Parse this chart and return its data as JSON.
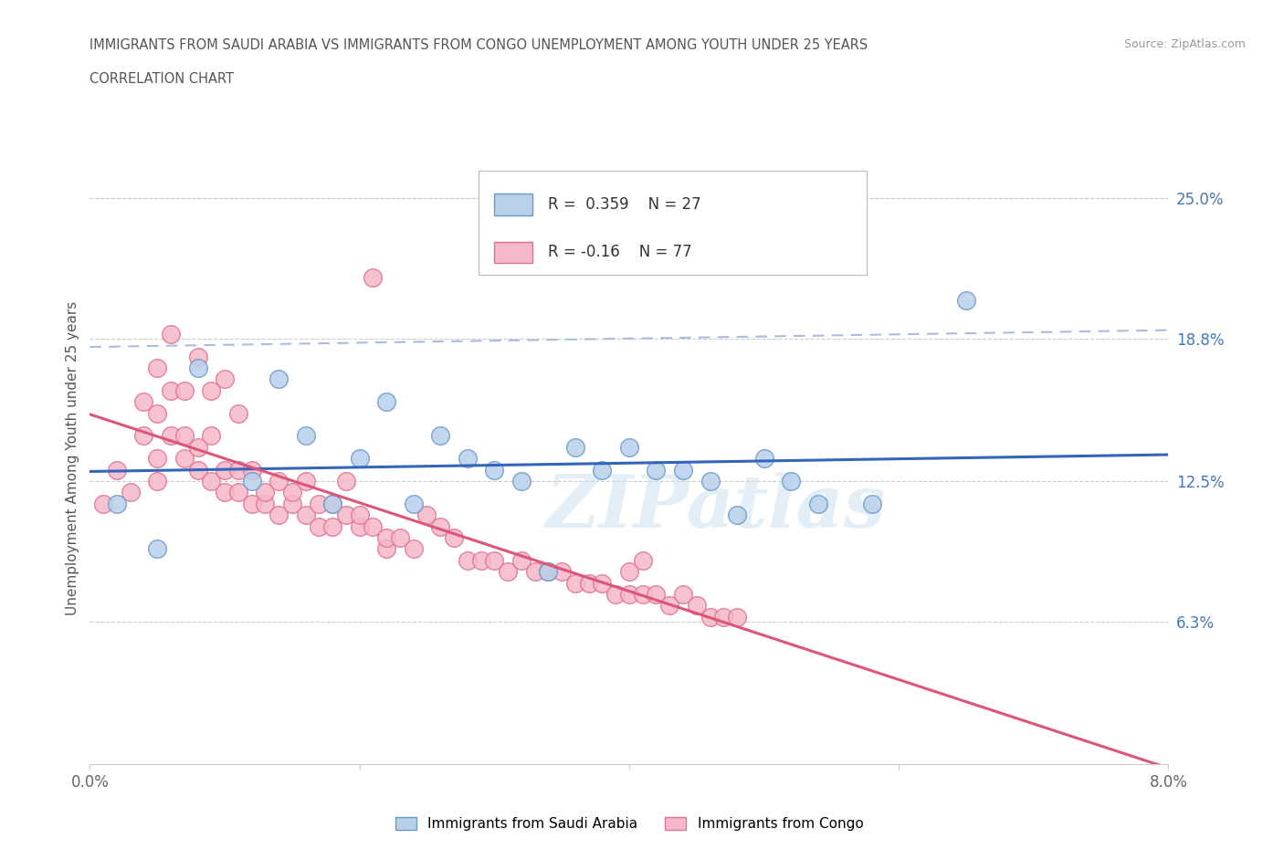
{
  "title_line1": "IMMIGRANTS FROM SAUDI ARABIA VS IMMIGRANTS FROM CONGO UNEMPLOYMENT AMONG YOUTH UNDER 25 YEARS",
  "title_line2": "CORRELATION CHART",
  "source_text": "Source: ZipAtlas.com",
  "ylabel": "Unemployment Among Youth under 25 years",
  "xlim": [
    0.0,
    0.08
  ],
  "ylim": [
    0.0,
    0.27
  ],
  "ytick_vals": [
    0.063,
    0.125,
    0.188,
    0.25
  ],
  "ytick_labels": [
    "6.3%",
    "12.5%",
    "18.8%",
    "25.0%"
  ],
  "xtick_vals": [
    0.0,
    0.02,
    0.04,
    0.06,
    0.08
  ],
  "xtick_labels": [
    "0.0%",
    "",
    "",
    "",
    "8.0%"
  ],
  "saudi_fill": "#b8d0ea",
  "saudi_edge": "#6699cc",
  "congo_fill": "#f5b8c8",
  "congo_edge": "#e07090",
  "trend_saudi_color": "#3366bb",
  "trend_congo_color": "#dd5577",
  "trend_saudi_dash_color": "#aabbdd",
  "R_saudi": 0.359,
  "N_saudi": 27,
  "R_congo": -0.16,
  "N_congo": 77,
  "legend_label_saudi": "Immigrants from Saudi Arabia",
  "legend_label_congo": "Immigrants from Congo",
  "watermark": "ZIPatlas",
  "saudi_x": [
    0.002,
    0.005,
    0.008,
    0.012,
    0.014,
    0.016,
    0.018,
    0.02,
    0.022,
    0.024,
    0.026,
    0.028,
    0.03,
    0.032,
    0.034,
    0.036,
    0.038,
    0.04,
    0.042,
    0.044,
    0.046,
    0.048,
    0.05,
    0.052,
    0.054,
    0.058,
    0.065
  ],
  "saudi_y": [
    0.115,
    0.095,
    0.175,
    0.125,
    0.17,
    0.145,
    0.115,
    0.135,
    0.16,
    0.115,
    0.145,
    0.135,
    0.13,
    0.125,
    0.085,
    0.14,
    0.13,
    0.14,
    0.13,
    0.13,
    0.125,
    0.11,
    0.135,
    0.125,
    0.115,
    0.115,
    0.205
  ],
  "congo_x": [
    0.001,
    0.002,
    0.003,
    0.004,
    0.004,
    0.005,
    0.005,
    0.005,
    0.006,
    0.006,
    0.007,
    0.007,
    0.008,
    0.008,
    0.009,
    0.009,
    0.01,
    0.01,
    0.011,
    0.011,
    0.012,
    0.012,
    0.013,
    0.013,
    0.014,
    0.014,
    0.015,
    0.015,
    0.016,
    0.016,
    0.017,
    0.017,
    0.018,
    0.018,
    0.019,
    0.019,
    0.02,
    0.02,
    0.021,
    0.021,
    0.022,
    0.022,
    0.023,
    0.024,
    0.025,
    0.026,
    0.027,
    0.028,
    0.029,
    0.03,
    0.031,
    0.032,
    0.033,
    0.034,
    0.035,
    0.036,
    0.037,
    0.038,
    0.039,
    0.04,
    0.041,
    0.042,
    0.043,
    0.044,
    0.045,
    0.046,
    0.047,
    0.048,
    0.04,
    0.041,
    0.005,
    0.006,
    0.007,
    0.008,
    0.009,
    0.01,
    0.011
  ],
  "congo_y": [
    0.115,
    0.13,
    0.12,
    0.16,
    0.145,
    0.125,
    0.155,
    0.135,
    0.165,
    0.145,
    0.135,
    0.145,
    0.13,
    0.14,
    0.125,
    0.145,
    0.13,
    0.12,
    0.13,
    0.12,
    0.115,
    0.13,
    0.115,
    0.12,
    0.11,
    0.125,
    0.115,
    0.12,
    0.11,
    0.125,
    0.105,
    0.115,
    0.105,
    0.115,
    0.11,
    0.125,
    0.105,
    0.11,
    0.105,
    0.215,
    0.095,
    0.1,
    0.1,
    0.095,
    0.11,
    0.105,
    0.1,
    0.09,
    0.09,
    0.09,
    0.085,
    0.09,
    0.085,
    0.085,
    0.085,
    0.08,
    0.08,
    0.08,
    0.075,
    0.075,
    0.075,
    0.075,
    0.07,
    0.075,
    0.07,
    0.065,
    0.065,
    0.065,
    0.085,
    0.09,
    0.175,
    0.19,
    0.165,
    0.18,
    0.165,
    0.17,
    0.155
  ]
}
